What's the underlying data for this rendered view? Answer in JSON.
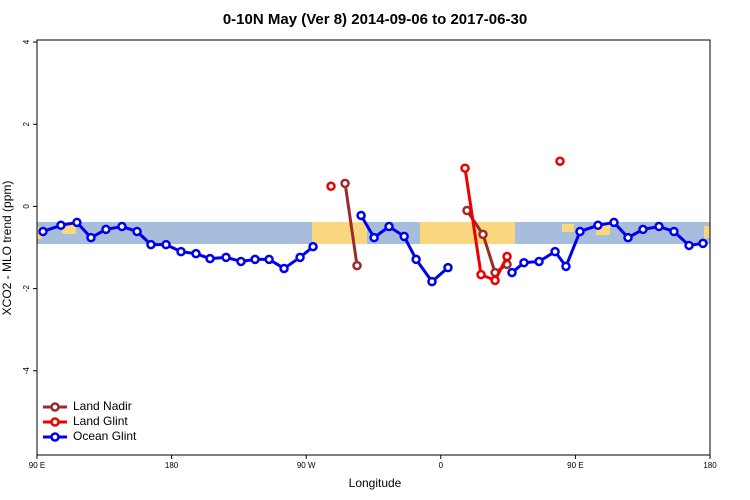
{
  "chart_data": {
    "type": "line",
    "title": "0-10N May (Ver 8)   2014-09-06 to 2017-06-30",
    "x_label": "Longitude",
    "y_label": "XCO2 - MLO trend (ppm)",
    "xlim": [
      90,
      540
    ],
    "xticks": [
      {
        "value": 90,
        "label": "90 E"
      },
      {
        "value": 180,
        "label": "180"
      },
      {
        "value": 270,
        "label": "90 W"
      },
      {
        "value": 360,
        "label": "0"
      },
      {
        "value": 450,
        "label": "90 E"
      },
      {
        "value": 540,
        "label": "180"
      }
    ],
    "ylim": [
      -6.05,
      4.05
    ],
    "yticks": [
      -4,
      -2,
      0,
      2,
      4
    ],
    "legend": "bottom-left",
    "series": [
      {
        "name": "Land Nadir",
        "color": "#9b2a2a",
        "x": [
          296.0,
          304.0,
          null,
          377.5,
          388.2,
          396.3,
          404.3
        ],
        "values": [
          0.56,
          -1.44,
          null,
          -0.1,
          -0.68,
          -1.61,
          -1.41
        ]
      },
      {
        "name": "Land Glint",
        "color": "#ee0000",
        "x": [
          286.6,
          null,
          376.2,
          386.9,
          396.3,
          404.3,
          null,
          439.7
        ],
        "values": [
          0.49,
          null,
          0.93,
          -1.66,
          -1.8,
          -1.22,
          null,
          1.1
        ]
      },
      {
        "name": "Ocean Glint",
        "color": "#0000ee",
        "x": [
          94.0,
          106.0,
          116.7,
          126.1,
          136.1,
          146.8,
          156.9,
          166.2,
          176.3,
          186.3,
          196.3,
          205.7,
          216.4,
          226.4,
          235.8,
          245.2,
          255.2,
          265.9,
          274.6,
          null,
          306.7,
          315.4,
          325.4,
          335.5,
          343.5,
          354.1,
          364.8,
          null,
          407.6,
          415.6,
          425.7,
          436.4,
          443.7,
          453.1,
          465.1,
          475.8,
          485.2,
          495.2,
          505.9,
          515.9,
          526.0,
          535.3
        ],
        "values": [
          -0.61,
          -0.46,
          -0.39,
          -0.76,
          -0.56,
          -0.49,
          -0.61,
          -0.93,
          -0.93,
          -1.1,
          -1.15,
          -1.27,
          -1.24,
          -1.34,
          -1.29,
          -1.29,
          -1.51,
          -1.24,
          -0.98,
          null,
          -0.22,
          -0.76,
          -0.49,
          -0.73,
          -1.29,
          -1.83,
          -1.49,
          null,
          -1.61,
          -1.37,
          -1.34,
          -1.1,
          -1.46,
          -0.61,
          -0.46,
          -0.39,
          -0.76,
          -0.56,
          -0.49,
          -0.61,
          -0.95,
          -0.9
        ]
      }
    ]
  }
}
